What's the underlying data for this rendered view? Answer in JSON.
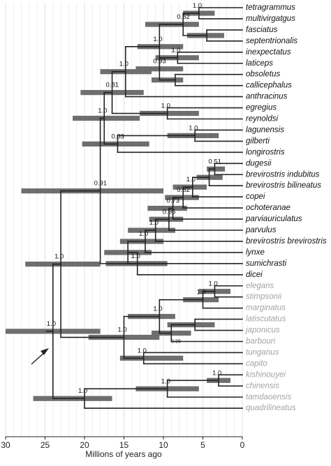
{
  "axis": {
    "title": "Millions of years ago",
    "ticks": [
      30,
      25,
      20,
      15,
      10,
      5,
      0
    ],
    "range": [
      30,
      0
    ]
  },
  "tips": [
    {
      "name": "tetragrammus",
      "group": "dark"
    },
    {
      "name": "multivirgatgus",
      "group": "dark"
    },
    {
      "name": "fasciatus",
      "group": "dark"
    },
    {
      "name": "septentrionalis",
      "group": "dark"
    },
    {
      "name": "inexpectatus",
      "group": "dark"
    },
    {
      "name": "laticeps",
      "group": "dark"
    },
    {
      "name": "obsoletus",
      "group": "dark"
    },
    {
      "name": "callicephalus",
      "group": "dark"
    },
    {
      "name": "anthracinus",
      "group": "dark"
    },
    {
      "name": "egregius",
      "group": "dark"
    },
    {
      "name": "reynoldsi",
      "group": "dark"
    },
    {
      "name": "lagunensis",
      "group": "dark"
    },
    {
      "name": "gilberti",
      "group": "dark"
    },
    {
      "name": "longirostris",
      "group": "dark"
    },
    {
      "name": "dugesii",
      "group": "dark"
    },
    {
      "name": "brevirostris indubitus",
      "group": "dark"
    },
    {
      "name": "brevirostris bilineatus",
      "group": "dark"
    },
    {
      "name": "copei",
      "group": "dark"
    },
    {
      "name": "ochoteranae",
      "group": "dark"
    },
    {
      "name": "parviauriculatus",
      "group": "dark"
    },
    {
      "name": "parvulus",
      "group": "dark"
    },
    {
      "name": "brevirostris brevirostris",
      "group": "dark"
    },
    {
      "name": "lynxe",
      "group": "dark"
    },
    {
      "name": "sumichrasti",
      "group": "dark"
    },
    {
      "name": "dicei",
      "group": "dark"
    },
    {
      "name": "elegans",
      "group": "grey"
    },
    {
      "name": "stimpsonii",
      "group": "grey"
    },
    {
      "name": "marginatus",
      "group": "grey"
    },
    {
      "name": "latiscutatus",
      "group": "grey"
    },
    {
      "name": "japonicus",
      "group": "grey"
    },
    {
      "name": "barbouri",
      "group": "grey"
    },
    {
      "name": "tunganus",
      "group": "grey"
    },
    {
      "name": "capito",
      "group": "grey"
    },
    {
      "name": "kishinouyei",
      "group": "grey"
    },
    {
      "name": "chinensis",
      "group": "grey"
    },
    {
      "name": "tamdaoensis",
      "group": "grey"
    },
    {
      "name": "quadrilineatus",
      "group": "grey"
    }
  ],
  "nodes": [
    {
      "id": "n_tet_mul",
      "age": 5.5,
      "children": [
        "tetragrammus",
        "multivirgatgus"
      ],
      "support": "1.0",
      "hpd": [
        3.5,
        7.5
      ]
    },
    {
      "id": "n_fas_sep",
      "age": 4.5,
      "children": [
        "fasciatus",
        "septentrionalis"
      ],
      "support": "",
      "hpd": [
        2.3,
        7.0
      ]
    },
    {
      "id": "n_tm_fs",
      "age": 7.5,
      "children": [
        "n_tet_mul",
        "n_fas_sep"
      ],
      "support": "0.52",
      "hpd": [
        5.5,
        12.3
      ]
    },
    {
      "id": "n_ine_lat",
      "age": 8.2,
      "children": [
        "inexpectatus",
        "laticeps"
      ],
      "support": "1.0",
      "hpd": [
        5.5,
        11.0
      ]
    },
    {
      "id": "n_obs_cal",
      "age": 8.5,
      "children": [
        "obsoletus",
        "callicephalus"
      ],
      "support": "",
      "hpd": [
        7.5,
        11.5
      ]
    },
    {
      "id": "n_il_oc",
      "age": 10.5,
      "children": [
        "n_ine_lat",
        "n_obs_cal"
      ],
      "support": "0.93",
      "hpd": [
        7.5,
        13.5
      ]
    },
    {
      "id": "n_grpA1",
      "age": 10.5,
      "children": [
        "n_tm_fs",
        "n_il_oc"
      ],
      "support": "1.0",
      "hpd": [
        7.5,
        13.3
      ]
    },
    {
      "id": "n_grpA",
      "age": 14.8,
      "children": [
        "n_grpA1",
        "anthracinus"
      ],
      "support": "1.0",
      "hpd": [
        11.5,
        18.0
      ]
    },
    {
      "id": "n_egr_rey",
      "age": 9.5,
      "children": [
        "egregius",
        "reynoldsi"
      ],
      "support": "1.0",
      "hpd": [
        5.5,
        13.0
      ]
    },
    {
      "id": "n_grpB",
      "age": 16.5,
      "children": [
        "n_grpA",
        "n_egr_rey"
      ],
      "support": "0.81",
      "hpd": [
        12.5,
        20.5
      ]
    },
    {
      "id": "n_lag_gil",
      "age": 6.0,
      "children": [
        "lagunensis",
        "gilberti"
      ],
      "support": "1.0",
      "hpd": [
        3.0,
        9.5
      ]
    },
    {
      "id": "n_grpC",
      "age": 15.8,
      "children": [
        "n_lag_gil",
        "longirostris"
      ],
      "support": "0.83",
      "hpd": [
        11.8,
        20.3
      ]
    },
    {
      "id": "n_north",
      "age": 17.5,
      "children": [
        "n_grpB",
        "n_grpC"
      ],
      "support": "1.0",
      "hpd": [
        13.0,
        21.5
      ]
    },
    {
      "id": "n_dug_ind",
      "age": 3.5,
      "children": [
        "dugesii",
        "brevirostris indubitus"
      ],
      "support": "0.51",
      "hpd": [
        2.2,
        4.5
      ]
    },
    {
      "id": "n_brev1",
      "age": 4.2,
      "children": [
        "n_dug_ind",
        "brevirostris bilineatus"
      ],
      "support": "",
      "hpd": [
        2.5,
        5.8
      ]
    },
    {
      "id": "n_brev2",
      "age": 6.3,
      "children": [
        "n_brev1",
        "copei"
      ],
      "support": "1.0",
      "hpd": [
        4.5,
        8.8
      ]
    },
    {
      "id": "n_brev3",
      "age": 7.5,
      "children": [
        "n_brev2",
        "ochoteranae"
      ],
      "support": "0.82",
      "hpd": [
        5.5,
        9.8
      ]
    },
    {
      "id": "n_brev4",
      "age": 8.8,
      "children": [
        "n_brev3",
        "parviauriculatus"
      ],
      "support": "0.73",
      "hpd": [
        7.0,
        12.0
      ]
    },
    {
      "id": "n_brev5",
      "age": 9.3,
      "children": [
        "n_brev4",
        "parvulus"
      ],
      "support": "0.95",
      "hpd": [
        7.5,
        11.8
      ]
    },
    {
      "id": "n_brev6",
      "age": 11.0,
      "children": [
        "n_brev5",
        "brevirostris brevirostris"
      ],
      "support": "1.0",
      "hpd": [
        8.5,
        14.5
      ]
    },
    {
      "id": "n_brev7",
      "age": 12.3,
      "children": [
        "n_brev6",
        "lynxe"
      ],
      "support": "1.0",
      "hpd": [
        10.0,
        15.5
      ]
    },
    {
      "id": "n_brev8",
      "age": 14.5,
      "children": [
        "n_brev7",
        "sumichrasti"
      ],
      "support": "",
      "hpd": [
        11.5,
        17.5
      ]
    },
    {
      "id": "n_central",
      "age": 13.3,
      "children": [
        "n_brev8",
        "dicei"
      ],
      "support": "1.0",
      "hpd": [
        9.5,
        17.3
      ]
    },
    {
      "id": "n_americas",
      "age": 18.0,
      "children": [
        "n_north",
        "n_central"
      ],
      "support": "0.91",
      "hpd": [
        10.0,
        28.0
      ]
    },
    {
      "id": "n_ele_sti",
      "age": 3.5,
      "children": [
        "elegans",
        "stimpsonii"
      ],
      "support": "1.0",
      "hpd": [
        1.5,
        5.5
      ]
    },
    {
      "id": "n_esm",
      "age": 5.0,
      "children": [
        "n_ele_sti",
        "marginatus"
      ],
      "support": "1.0",
      "hpd": [
        3.0,
        7.5
      ]
    },
    {
      "id": "n_lat_jap",
      "age": 6.0,
      "children": [
        "latiscutatus",
        "japonicus"
      ],
      "support": "",
      "hpd": [
        3.5,
        9.5
      ]
    },
    {
      "id": "n_ljb",
      "age": 9.0,
      "children": [
        "n_lat_jap",
        "barbouri"
      ],
      "support": "0.99",
      "hpd": [
        6.5,
        11.5
      ]
    },
    {
      "id": "n_japan",
      "age": 10.5,
      "children": [
        "n_esm",
        "n_ljb"
      ],
      "support": "1.0",
      "hpd": [
        8.5,
        14.5
      ]
    },
    {
      "id": "n_tun_cap",
      "age": 12.5,
      "children": [
        "tunganus",
        "capito"
      ],
      "support": "1.0",
      "hpd": [
        7.5,
        15.5
      ]
    },
    {
      "id": "n_asia",
      "age": 15.0,
      "children": [
        "n_japan",
        "n_tun_cap"
      ],
      "support": "1.0",
      "hpd": [
        10.5,
        19.5
      ]
    },
    {
      "id": "n_newworld",
      "age": 23.0,
      "children": [
        "n_americas",
        "n_asia"
      ],
      "support": "1.0",
      "hpd": [
        18.0,
        27.5
      ]
    },
    {
      "id": "n_kis_chi",
      "age": 3.0,
      "children": [
        "kishinouyei",
        "chinensis"
      ],
      "support": "1.0",
      "hpd": [
        1.5,
        4.5
      ]
    },
    {
      "id": "n_kct",
      "age": 9.5,
      "children": [
        "n_kis_chi",
        "tamdaoensis"
      ],
      "support": "1.0",
      "hpd": [
        5.5,
        13.5
      ]
    },
    {
      "id": "n_south",
      "age": 20.0,
      "children": [
        "n_kct",
        "quadrilineatus"
      ],
      "support": "1.0",
      "hpd": [
        16.5,
        26.5
      ]
    },
    {
      "id": "n_root",
      "age": 24.0,
      "children": [
        "n_newworld",
        "n_south"
      ],
      "support": "1.0",
      "hpd": [
        18.0,
        30.0
      ]
    }
  ]
}
